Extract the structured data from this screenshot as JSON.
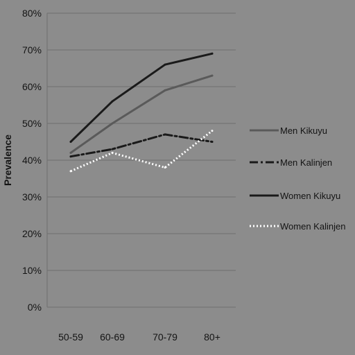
{
  "chart_data": {
    "type": "line",
    "ylabel": "Prevalence",
    "xlabel": "",
    "ylim": [
      0,
      80
    ],
    "ytick_step": 10,
    "ytick_suffix": "%",
    "grid": true,
    "legend_position": "right",
    "categories": [
      "50-59",
      "60-69",
      "70-79",
      "80+"
    ],
    "series": [
      {
        "name": "Men Kikuyu",
        "values": [
          42,
          50,
          59,
          63
        ],
        "style": "solid",
        "color": "#5a5a5a"
      },
      {
        "name": "Men Kalinjen",
        "values": [
          41,
          43,
          47,
          45
        ],
        "style": "dashdot",
        "color": "#1a1a1a"
      },
      {
        "name": "Women Kikuyu",
        "values": [
          45,
          56,
          66,
          69
        ],
        "style": "solid",
        "color": "#1a1a1a"
      },
      {
        "name": "Women Kalinjen",
        "values": [
          37,
          42,
          38,
          48
        ],
        "style": "dotted",
        "color": "#ffffff"
      }
    ],
    "colors": {
      "background": "#8c8c8c",
      "gridline": "#6e6e6e",
      "text": "#141414"
    }
  }
}
